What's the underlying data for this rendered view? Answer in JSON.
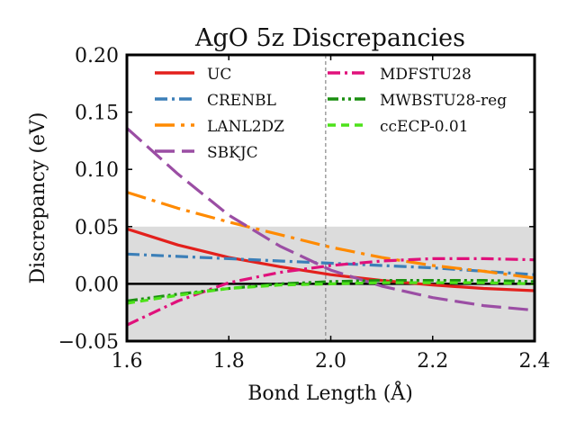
{
  "chart_data": {
    "type": "line",
    "title": "AgO 5z Discrepancies",
    "xlabel": "Bond Length (Å)",
    "ylabel": "Discrepancy (eV)",
    "xlim": [
      1.6,
      2.4
    ],
    "ylim": [
      -0.05,
      0.2
    ],
    "xticks": [
      1.6,
      1.8,
      2.0,
      2.2,
      2.4
    ],
    "xtick_labels": [
      "1.6",
      "1.8",
      "2.0",
      "2.2",
      "2.4"
    ],
    "yticks": [
      -0.05,
      0.0,
      0.05,
      0.1,
      0.15,
      0.2
    ],
    "ytick_labels": [
      "−0.05",
      "0.00",
      "0.05",
      "0.10",
      "0.15",
      "0.20"
    ],
    "shaded_band": {
      "y0": -0.05,
      "y1": 0.05,
      "color": "#dcdcdc"
    },
    "reference_vline": {
      "x": 1.99,
      "style": "dashed",
      "color": "#888888"
    },
    "reference_hline": {
      "y": 0.0,
      "color": "#000000"
    },
    "grid": false,
    "legend_placement": "top, two columns",
    "series": [
      {
        "name": "UC",
        "color": "#e3201c",
        "dash": "solid",
        "x": [
          1.6,
          1.7,
          1.8,
          1.9,
          2.0,
          2.1,
          2.2,
          2.3,
          2.4
        ],
        "y": [
          0.048,
          0.034,
          0.023,
          0.015,
          0.008,
          0.003,
          -0.001,
          -0.004,
          -0.006
        ]
      },
      {
        "name": "CRENBL",
        "color": "#3b7fb8",
        "dash": "dashdot",
        "x": [
          1.6,
          1.7,
          1.8,
          1.9,
          2.0,
          2.1,
          2.2,
          2.3,
          2.4
        ],
        "y": [
          0.026,
          0.024,
          0.022,
          0.02,
          0.018,
          0.016,
          0.014,
          0.011,
          0.008
        ]
      },
      {
        "name": "LANL2DZ",
        "color": "#ff8a00",
        "dash": "longdashdot",
        "x": [
          1.6,
          1.7,
          1.8,
          1.9,
          2.0,
          2.1,
          2.2,
          2.3,
          2.4
        ],
        "y": [
          0.08,
          0.066,
          0.054,
          0.043,
          0.032,
          0.023,
          0.016,
          0.011,
          0.005
        ]
      },
      {
        "name": "SBKJC",
        "color": "#9b4ea4",
        "dash": "longdash",
        "x": [
          1.6,
          1.7,
          1.8,
          1.9,
          2.0,
          2.1,
          2.2,
          2.3,
          2.4
        ],
        "y": [
          0.136,
          0.096,
          0.06,
          0.033,
          0.012,
          -0.002,
          -0.012,
          -0.019,
          -0.023
        ]
      },
      {
        "name": "MDFSTU28",
        "color": "#e0117b",
        "dash": "dashdot",
        "x": [
          1.6,
          1.7,
          1.8,
          1.9,
          2.0,
          2.1,
          2.2,
          2.3,
          2.4
        ],
        "y": [
          -0.036,
          -0.015,
          0.001,
          0.01,
          0.016,
          0.02,
          0.022,
          0.022,
          0.021
        ]
      },
      {
        "name": "MWBSTU28-reg",
        "color": "#1a8f10",
        "dash": "dashdotdot",
        "x": [
          1.6,
          1.7,
          1.8,
          1.9,
          2.0,
          2.1,
          2.2,
          2.3,
          2.4
        ],
        "y": [
          -0.015,
          -0.009,
          -0.004,
          0.0,
          0.002,
          0.003,
          0.003,
          0.003,
          0.002
        ]
      },
      {
        "name": "ccECP-0.01",
        "color": "#4de21a",
        "dash": "dashed",
        "x": [
          1.6,
          1.7,
          1.8,
          1.9,
          2.0,
          2.1,
          2.2,
          2.3,
          2.4
        ],
        "y": [
          -0.017,
          -0.01,
          -0.004,
          -0.001,
          0.0,
          0.001,
          0.001,
          0.001,
          0.0
        ]
      }
    ],
    "legend_columns": [
      [
        "UC",
        "CRENBL",
        "LANL2DZ",
        "SBKJC"
      ],
      [
        "MDFSTU28",
        "MWBSTU28-reg",
        "ccECP-0.01"
      ]
    ]
  }
}
